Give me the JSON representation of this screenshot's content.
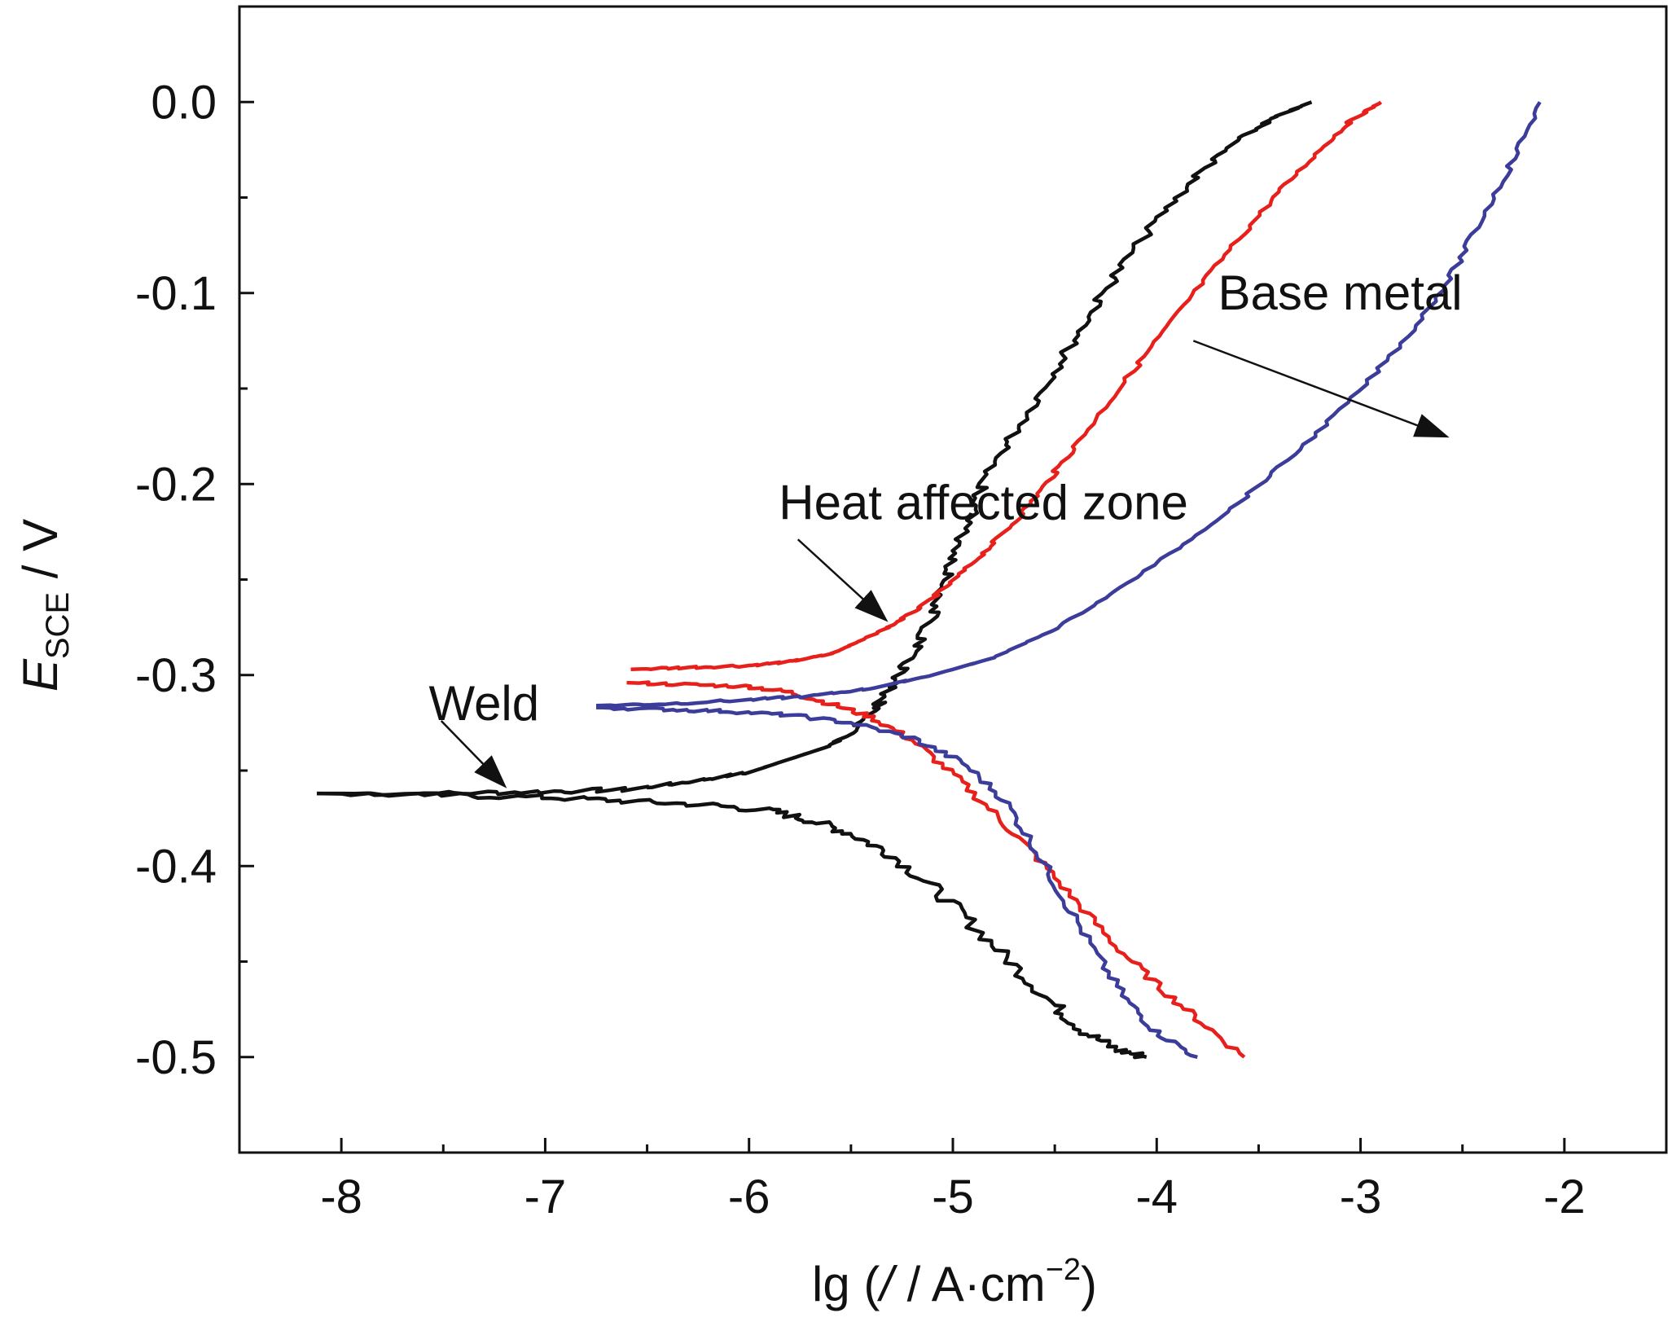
{
  "chart_data": {
    "type": "line",
    "xlabel": {
      "prefix": "lg (",
      "italic": "/",
      "unit": " / A·cm",
      "sup": "−2",
      "suffix": ")"
    },
    "ylabel": {
      "main": "E",
      "sub": "SCE",
      "unit": " / V"
    },
    "xlim": [
      -8.5,
      -1.5
    ],
    "ylim": [
      -0.55,
      0.05
    ],
    "xticks": [
      -8,
      -7,
      -6,
      -5,
      -4,
      -3,
      -2
    ],
    "xtick_labels": [
      "-8",
      "-7",
      "-6",
      "-5",
      "-4",
      "-3",
      "-2"
    ],
    "yticks": [
      0.0,
      -0.1,
      -0.2,
      -0.3,
      -0.4,
      -0.5
    ],
    "ytick_labels": [
      "0.0",
      "-0.1",
      "-0.2",
      "-0.3",
      "-0.4",
      "-0.5"
    ],
    "grid": false,
    "series": [
      {
        "color": "#111111",
        "anodic": [
          [
            -8.12,
            -0.362
          ],
          [
            -7.5,
            -0.362
          ],
          [
            -7.0,
            -0.361
          ],
          [
            -6.6,
            -0.36
          ],
          [
            -6.3,
            -0.356
          ],
          [
            -6.0,
            -0.351
          ],
          [
            -5.8,
            -0.344
          ],
          [
            -5.6,
            -0.337
          ],
          [
            -5.5,
            -0.33
          ],
          [
            -5.38,
            -0.318
          ],
          [
            -5.3,
            -0.305
          ],
          [
            -5.2,
            -0.29
          ],
          [
            -5.1,
            -0.27
          ],
          [
            -5.03,
            -0.25
          ],
          [
            -4.96,
            -0.23
          ],
          [
            -4.88,
            -0.207
          ],
          [
            -4.78,
            -0.186
          ],
          [
            -4.65,
            -0.165
          ],
          [
            -4.5,
            -0.14
          ],
          [
            -4.35,
            -0.115
          ],
          [
            -4.2,
            -0.09
          ],
          [
            -4.0,
            -0.062
          ],
          [
            -3.8,
            -0.038
          ],
          [
            -3.6,
            -0.02
          ],
          [
            -3.42,
            -0.008
          ],
          [
            -3.24,
            0.0
          ]
        ],
        "cathodic": [
          [
            -8.12,
            -0.362
          ],
          [
            -7.5,
            -0.363
          ],
          [
            -7.0,
            -0.364
          ],
          [
            -6.6,
            -0.366
          ],
          [
            -6.2,
            -0.368
          ],
          [
            -5.9,
            -0.371
          ],
          [
            -5.7,
            -0.376
          ],
          [
            -5.5,
            -0.383
          ],
          [
            -5.3,
            -0.394
          ],
          [
            -5.1,
            -0.411
          ],
          [
            -4.9,
            -0.431
          ],
          [
            -4.7,
            -0.452
          ],
          [
            -4.5,
            -0.473
          ],
          [
            -4.35,
            -0.487
          ],
          [
            -4.2,
            -0.496
          ],
          [
            -4.05,
            -0.5
          ]
        ]
      },
      {
        "color": "#e8201c",
        "anodic": [
          [
            -6.58,
            -0.297
          ],
          [
            -6.3,
            -0.296
          ],
          [
            -6.0,
            -0.295
          ],
          [
            -5.8,
            -0.293
          ],
          [
            -5.6,
            -0.289
          ],
          [
            -5.45,
            -0.282
          ],
          [
            -5.3,
            -0.274
          ],
          [
            -5.15,
            -0.264
          ],
          [
            -5.0,
            -0.251
          ],
          [
            -4.85,
            -0.236
          ],
          [
            -4.7,
            -0.22
          ],
          [
            -4.55,
            -0.201
          ],
          [
            -4.4,
            -0.18
          ],
          [
            -4.2,
            -0.152
          ],
          [
            -4.0,
            -0.125
          ],
          [
            -3.8,
            -0.098
          ],
          [
            -3.6,
            -0.072
          ],
          [
            -3.4,
            -0.047
          ],
          [
            -3.2,
            -0.025
          ],
          [
            -3.05,
            -0.01
          ],
          [
            -2.9,
            0.0
          ]
        ],
        "cathodic": [
          [
            -6.6,
            -0.304
          ],
          [
            -6.3,
            -0.305
          ],
          [
            -6.0,
            -0.306
          ],
          [
            -5.8,
            -0.309
          ],
          [
            -5.6,
            -0.315
          ],
          [
            -5.4,
            -0.322
          ],
          [
            -5.2,
            -0.334
          ],
          [
            -5.0,
            -0.352
          ],
          [
            -4.8,
            -0.372
          ],
          [
            -4.6,
            -0.394
          ],
          [
            -4.4,
            -0.418
          ],
          [
            -4.2,
            -0.442
          ],
          [
            -4.0,
            -0.462
          ],
          [
            -3.8,
            -0.48
          ],
          [
            -3.57,
            -0.5
          ]
        ]
      },
      {
        "color": "#3c3c9a",
        "anodic": [
          [
            -6.75,
            -0.316
          ],
          [
            -6.4,
            -0.315
          ],
          [
            -6.0,
            -0.313
          ],
          [
            -5.7,
            -0.311
          ],
          [
            -5.4,
            -0.307
          ],
          [
            -5.1,
            -0.3
          ],
          [
            -4.8,
            -0.291
          ],
          [
            -4.5,
            -0.276
          ],
          [
            -4.2,
            -0.256
          ],
          [
            -3.9,
            -0.234
          ],
          [
            -3.6,
            -0.21
          ],
          [
            -3.3,
            -0.182
          ],
          [
            -3.0,
            -0.151
          ],
          [
            -2.75,
            -0.12
          ],
          [
            -2.55,
            -0.09
          ],
          [
            -2.4,
            -0.06
          ],
          [
            -2.25,
            -0.03
          ],
          [
            -2.12,
            0.0
          ]
        ],
        "cathodic": [
          [
            -6.75,
            -0.317
          ],
          [
            -6.4,
            -0.318
          ],
          [
            -6.1,
            -0.319
          ],
          [
            -5.8,
            -0.321
          ],
          [
            -5.5,
            -0.325
          ],
          [
            -5.2,
            -0.333
          ],
          [
            -4.95,
            -0.346
          ],
          [
            -4.75,
            -0.365
          ],
          [
            -4.6,
            -0.39
          ],
          [
            -4.45,
            -0.418
          ],
          [
            -4.3,
            -0.446
          ],
          [
            -4.15,
            -0.47
          ],
          [
            -4.0,
            -0.487
          ],
          [
            -3.8,
            -0.5
          ]
        ]
      }
    ],
    "annotations": [
      {
        "text": "Base metal",
        "tx": -3.1,
        "ty": -0.1,
        "ax0": -3.82,
        "ay0": -0.125,
        "ax1": -2.58,
        "ay1": -0.175
      },
      {
        "text": "Heat affected zone",
        "tx": -4.85,
        "ty": -0.21,
        "ax0": -5.76,
        "ay0": -0.229,
        "ax1": -5.33,
        "ay1": -0.271
      },
      {
        "text": "Weld",
        "tx": -7.3,
        "ty": -0.315,
        "ax0": -7.51,
        "ay0": -0.324,
        "ax1": -7.2,
        "ay1": -0.358
      }
    ]
  }
}
